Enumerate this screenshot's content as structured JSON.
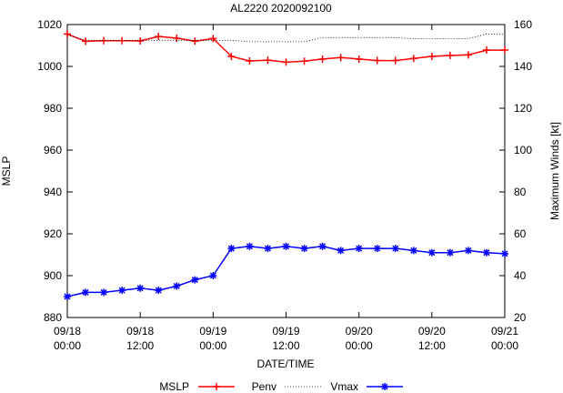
{
  "chart_data": {
    "type": "line",
    "title": "AL2220 2020092100",
    "xlabel": "DATE/TIME",
    "ylabel_left": "MSLP",
    "ylabel_right": "Maximum Winds [kt]",
    "xlim": [
      0,
      72
    ],
    "ylim_left": [
      880,
      1020
    ],
    "ylim_right": [
      20,
      160
    ],
    "grid": false,
    "legend_position": "bottom",
    "x_ticks": [
      {
        "x": 0,
        "line1": "09/18",
        "line2": "00:00"
      },
      {
        "x": 12,
        "line1": "09/18",
        "line2": "12:00"
      },
      {
        "x": 24,
        "line1": "09/19",
        "line2": "00:00"
      },
      {
        "x": 36,
        "line1": "09/19",
        "line2": "12:00"
      },
      {
        "x": 48,
        "line1": "09/20",
        "line2": "00:00"
      },
      {
        "x": 60,
        "line1": "09/20",
        "line2": "12:00"
      },
      {
        "x": 72,
        "line1": "09/21",
        "line2": "00:00"
      }
    ],
    "y_ticks_left": [
      880,
      900,
      920,
      940,
      960,
      980,
      1000,
      1020
    ],
    "y_ticks_right": [
      20,
      40,
      60,
      80,
      100,
      120,
      140,
      160
    ],
    "x": [
      0,
      3,
      6,
      9,
      12,
      15,
      18,
      21,
      24,
      27,
      30,
      33,
      36,
      39,
      42,
      45,
      48,
      51,
      54,
      57,
      60,
      63,
      66,
      69,
      72
    ],
    "series": [
      {
        "name": "MSLP",
        "axis": "left",
        "color": "#ff0000",
        "marker": "plus",
        "values": [
          1015.5,
          1012,
          1012.3,
          1012.3,
          1012.2,
          1014.3,
          1013.5,
          1012.1,
          1013.3,
          1004.8,
          1002.6,
          1003,
          1002,
          1002.5,
          1003.5,
          1004.2,
          1003.5,
          1002.8,
          1002.8,
          1003.8,
          1004.8,
          1005.2,
          1005.5,
          1007.8,
          1007.8
        ]
      },
      {
        "name": "Penv",
        "axis": "left",
        "color": "#000000",
        "style": "dotted",
        "values": [
          1015,
          1012.5,
          1012.5,
          1012.5,
          1012.5,
          1012.5,
          1012.5,
          1012.5,
          1012.5,
          1012.5,
          1011.8,
          1011.8,
          1011.8,
          1011.8,
          1013.8,
          1013.8,
          1013.8,
          1013.8,
          1013.8,
          1013.2,
          1013.2,
          1013.2,
          1013.2,
          1015.5,
          1015.5
        ]
      },
      {
        "name": "Vmax",
        "axis": "right",
        "color": "#0000ff",
        "marker": "star",
        "values": [
          30,
          32,
          32,
          33,
          34,
          33,
          35,
          38,
          40,
          53,
          54,
          53,
          54,
          53,
          54,
          52,
          53,
          53,
          53,
          52,
          51,
          51,
          52,
          51,
          50.5
        ]
      }
    ]
  }
}
